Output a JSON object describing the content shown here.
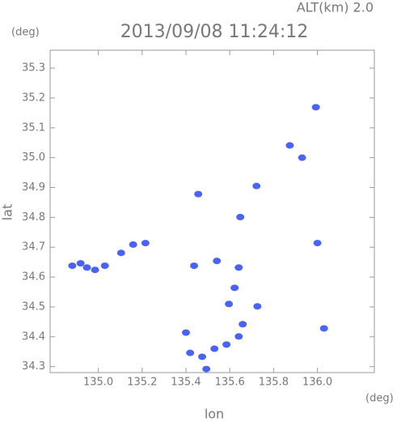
{
  "chart_data": {
    "type": "scatter",
    "title": "2013/09/08 11:24:12",
    "subtitle": "ALT(km) 2.0",
    "x_label": "lon",
    "x_unit": "(deg)",
    "y_label": "lat",
    "y_unit": "(deg)",
    "color": "#4a63f0",
    "xlim": [
      134.78,
      136.26
    ],
    "ylim": [
      34.28,
      35.36
    ],
    "xticks": [
      {
        "value": 135,
        "label": "135.0"
      },
      135.2,
      135.4,
      135.6,
      135.8,
      {
        "value": 136,
        "label": "136.0"
      }
    ],
    "yticks": [
      34.3,
      34.4,
      34.5,
      34.6,
      34.7,
      34.8,
      34.9,
      {
        "value": 35,
        "label": "35.0"
      },
      35.1,
      35.2,
      35.3
    ],
    "x": [
      134.881,
      134.919,
      134.948,
      134.985,
      135.03,
      135.104,
      135.159,
      135.215,
      135.993,
      135.93,
      135.874,
      135.722,
      135.648,
      135.456,
      135.541,
      135.437,
      135.641,
      135.622,
      135.596,
      135.726,
      135.659,
      135.641,
      135.585,
      135.53,
      135.474,
      135.493,
      135.419,
      135.4,
      136.03,
      136.0
    ],
    "values": [
      34.638,
      34.646,
      34.632,
      34.624,
      34.638,
      34.681,
      34.709,
      34.714,
      35.169,
      35.0,
      35.041,
      34.905,
      34.801,
      34.878,
      34.654,
      34.638,
      34.632,
      34.564,
      34.51,
      34.502,
      34.442,
      34.401,
      34.374,
      34.36,
      34.333,
      34.292,
      34.346,
      34.414,
      34.428,
      34.714
    ]
  }
}
